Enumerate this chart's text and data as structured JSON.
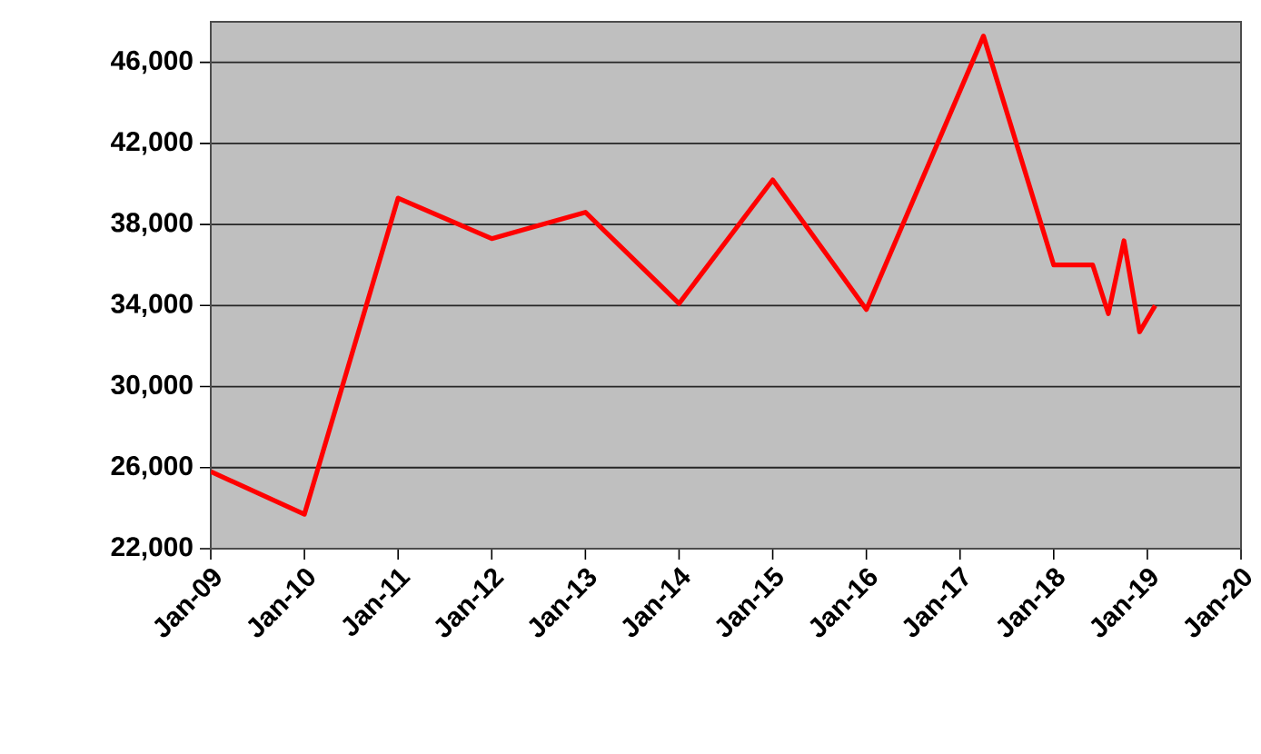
{
  "chart_data": {
    "type": "line",
    "x": [
      "2009-01",
      "2010-01",
      "2011-01",
      "2012-01",
      "2013-01",
      "2014-01",
      "2015-01",
      "2016-01",
      "2017-04",
      "2018-01",
      "2018-06",
      "2018-08",
      "2018-10",
      "2018-12",
      "2019-02"
    ],
    "series": [
      {
        "color": "#ff0000",
        "values": [
          25800,
          23700,
          39300,
          37300,
          38600,
          34100,
          40200,
          33800,
          47300,
          36000,
          36000,
          33600,
          37200,
          32700,
          34000
        ]
      }
    ],
    "xlim": [
      "2009-01",
      "2020-01"
    ],
    "xticks": [
      {
        "value": "2009-01",
        "label": "Jan-09"
      },
      {
        "value": "2010-01",
        "label": "Jan-10"
      },
      {
        "value": "2011-01",
        "label": "Jan-11"
      },
      {
        "value": "2012-01",
        "label": "Jan-12"
      },
      {
        "value": "2013-01",
        "label": "Jan-13"
      },
      {
        "value": "2014-01",
        "label": "Jan-14"
      },
      {
        "value": "2015-01",
        "label": "Jan-15"
      },
      {
        "value": "2016-01",
        "label": "Jan-16"
      },
      {
        "value": "2017-01",
        "label": "Jan-17"
      },
      {
        "value": "2018-01",
        "label": "Jan-18"
      },
      {
        "value": "2019-01",
        "label": "Jan-19"
      },
      {
        "value": "2020-01",
        "label": "Jan-20"
      }
    ],
    "ylim": [
      22000,
      48000
    ],
    "yticks": [
      {
        "value": 22000,
        "label": "22,000"
      },
      {
        "value": 26000,
        "label": "26,000"
      },
      {
        "value": 30000,
        "label": "30,000"
      },
      {
        "value": 34000,
        "label": "34,000"
      },
      {
        "value": 38000,
        "label": "38,000"
      },
      {
        "value": 42000,
        "label": "42,000"
      },
      {
        "value": 46000,
        "label": "46,000"
      }
    ],
    "grid": "y"
  }
}
